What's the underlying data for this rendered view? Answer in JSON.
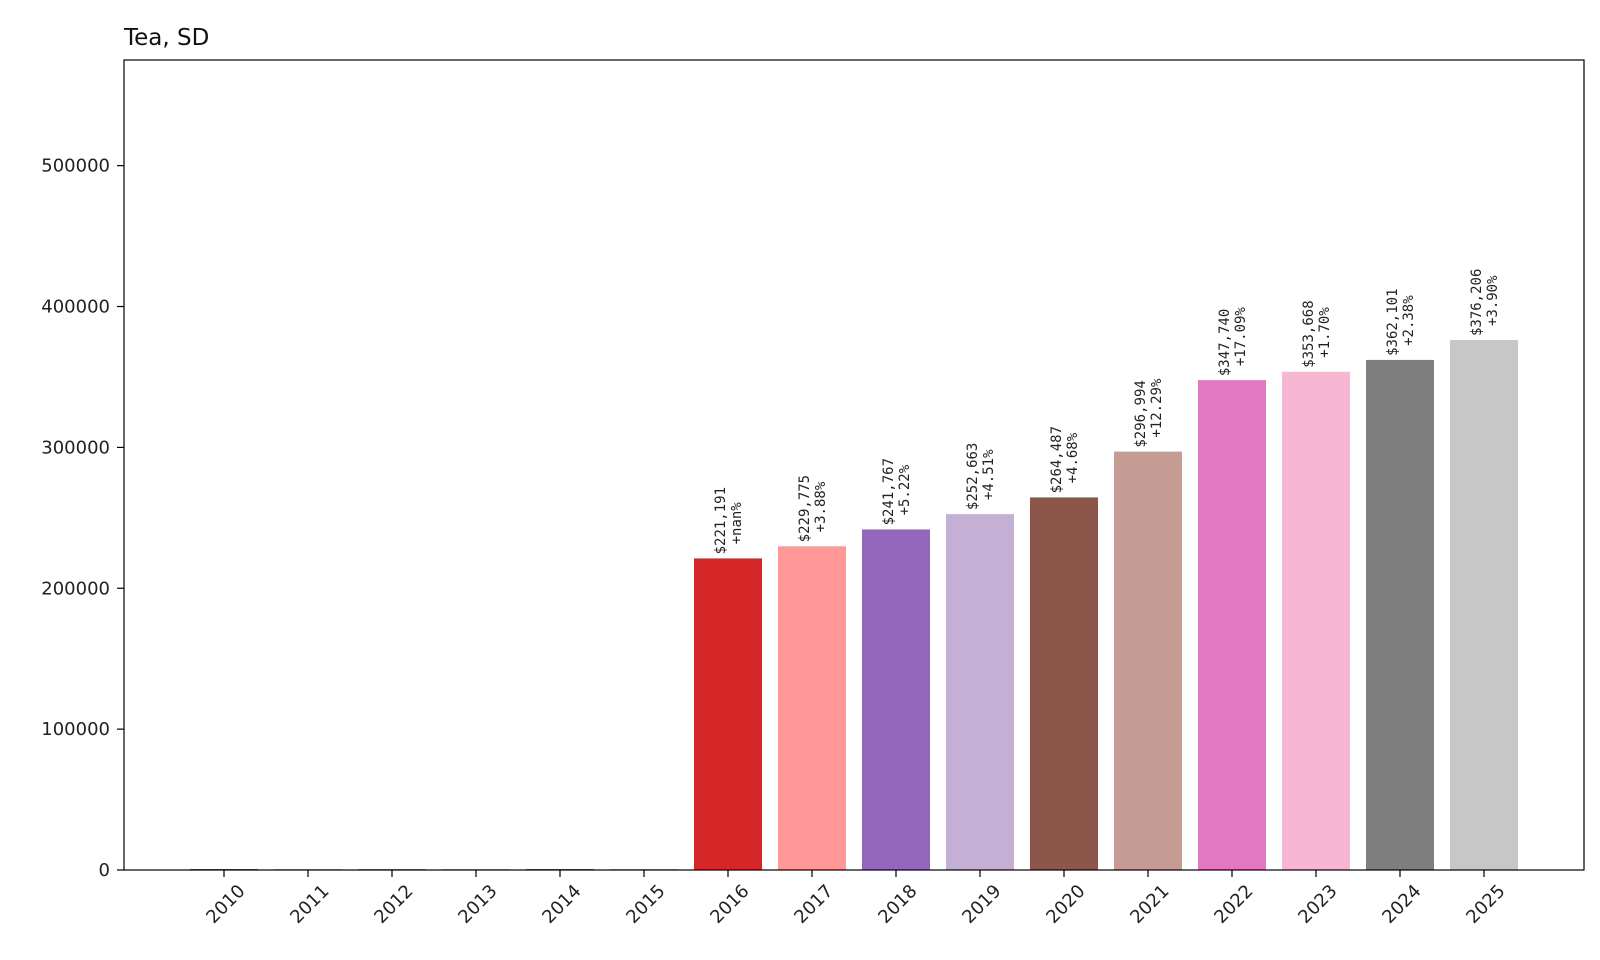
{
  "chart_data": {
    "type": "bar",
    "title": "Tea, SD",
    "xlabel": "",
    "ylabel": "",
    "ylim": [
      0,
      575000
    ],
    "yticks": [
      0,
      100000,
      200000,
      300000,
      400000,
      500000
    ],
    "ytick_labels": [
      "0",
      "100000",
      "200000",
      "300000",
      "400000",
      "500000"
    ],
    "categories": [
      "2010",
      "2011",
      "2012",
      "2013",
      "2014",
      "2015",
      "2016",
      "2017",
      "2018",
      "2019",
      "2020",
      "2021",
      "2022",
      "2023",
      "2024",
      "2025"
    ],
    "values": [
      0,
      0,
      0,
      0,
      0,
      0,
      221191,
      229775,
      241767,
      252663,
      264487,
      296994,
      347740,
      353668,
      362101,
      376206
    ],
    "value_labels": [
      "",
      "",
      "",
      "",
      "",
      "",
      "$221,191",
      "$229,775",
      "$241,767",
      "$252,663",
      "$264,487",
      "$296,994",
      "$347,740",
      "$353,668",
      "$362,101",
      "$376,206"
    ],
    "change_labels": [
      "",
      "",
      "",
      "",
      "",
      "",
      "+nan%",
      "+3.88%",
      "+5.22%",
      "+4.51%",
      "+4.68%",
      "+12.29%",
      "+17.09%",
      "+1.70%",
      "+2.38%",
      "+3.90%"
    ],
    "colors": [
      "#1f77b4",
      "#aec7e8",
      "#ff7f0e",
      "#ffbb78",
      "#2ca02c",
      "#98df8a",
      "#d62728",
      "#ff9896",
      "#9467bd",
      "#c5b0d5",
      "#8c564b",
      "#c49c94",
      "#e377c2",
      "#f7b6d2",
      "#7f7f7f",
      "#c7c7c7"
    ],
    "grid": false,
    "legend": "none"
  }
}
